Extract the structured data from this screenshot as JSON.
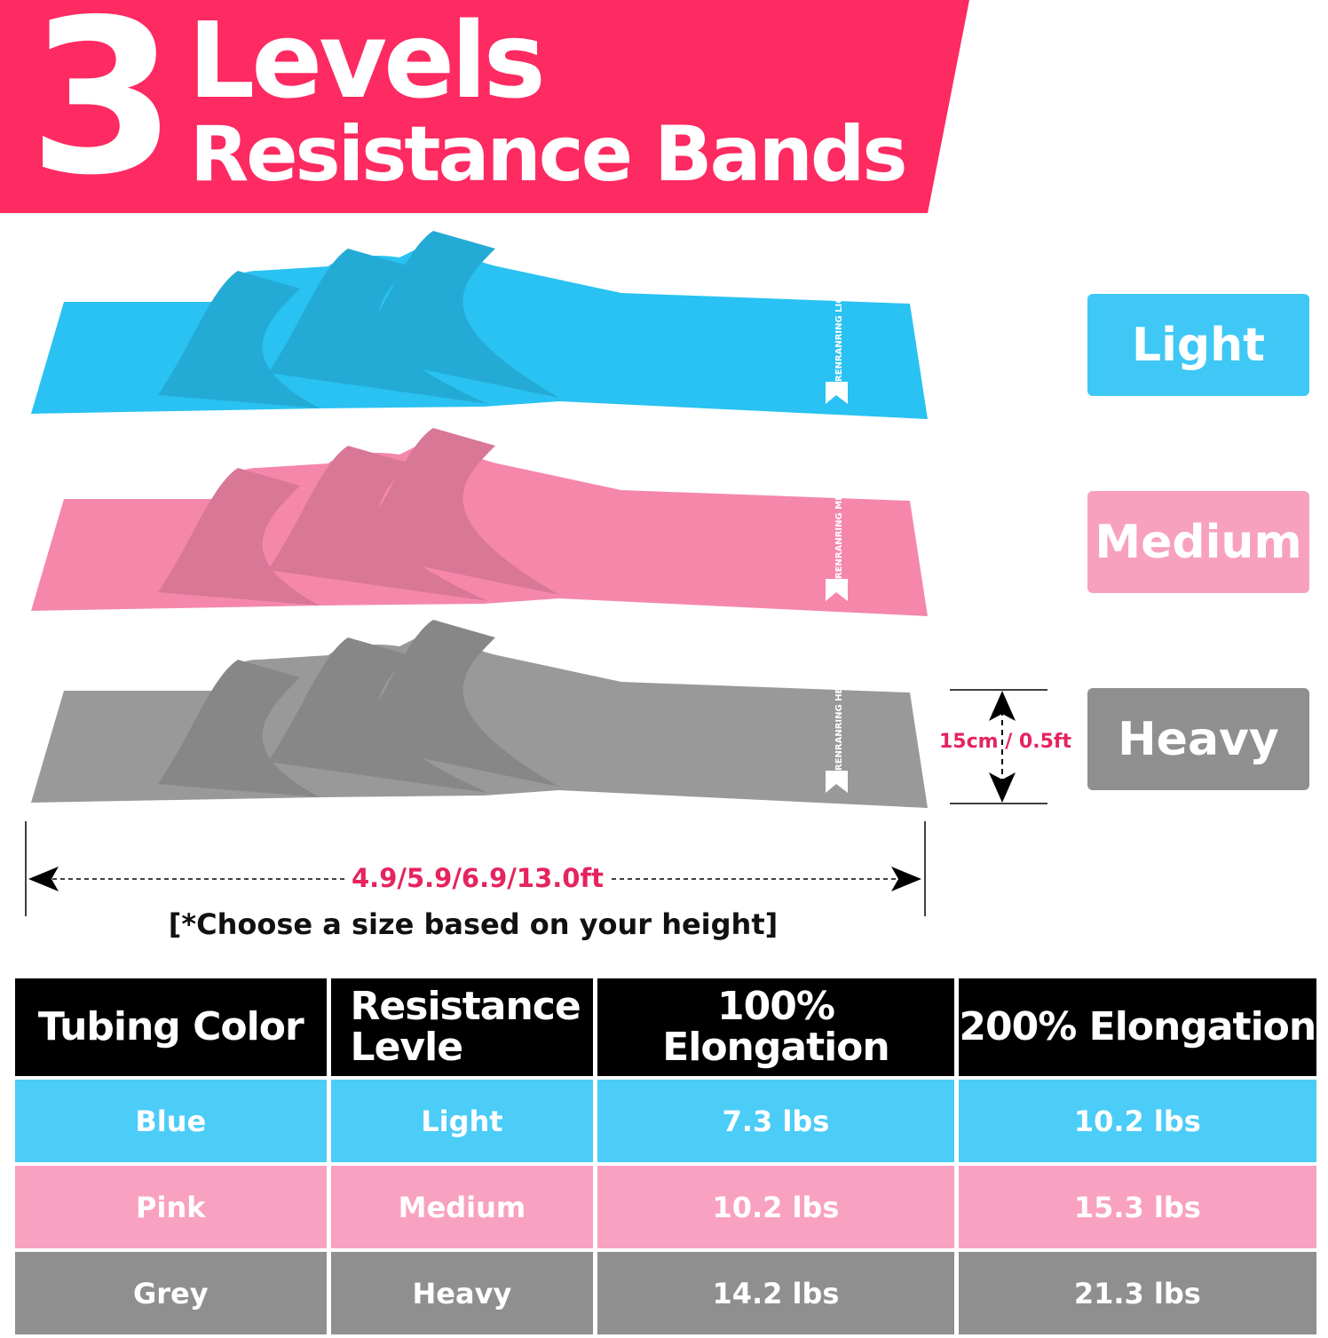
{
  "banner": {
    "number": "3",
    "line1": "Levels",
    "line2": "Resistance Bands",
    "color": "#fe2a62"
  },
  "bands": [
    {
      "name": "Light",
      "color": "#29c2f2",
      "logo_brand": "RENRANRING",
      "logo_level": "LIGTH"
    },
    {
      "name": "Medium",
      "color": "#f587ab",
      "logo_brand": "RENRANRING",
      "logo_level": "MEDIUM"
    },
    {
      "name": "Heavy",
      "color": "#999999",
      "logo_brand": "RENRANRING",
      "logo_level": "HEAVY"
    }
  ],
  "labels": {
    "light": "Light",
    "medium": "Medium",
    "heavy": "Heavy"
  },
  "dimensions": {
    "width": "15cm / 0.5ft",
    "length": "4.9/5.9/6.9/13.0ft",
    "note": "[*Choose a size based on your height]"
  },
  "table": {
    "headers": [
      "Tubing Color",
      "Resistance Levle",
      "100% Elongation",
      "200% Elongation"
    ],
    "rows": [
      {
        "cells": [
          "Blue",
          "Light",
          "7.3 lbs",
          "10.2 lbs"
        ],
        "color": "#4ccdf7"
      },
      {
        "cells": [
          "Pink",
          "Medium",
          "10.2 lbs",
          "15.3 lbs"
        ],
        "color": "#f9a1c0"
      },
      {
        "cells": [
          "Grey",
          "Heavy",
          "14.2 lbs",
          "21.3 lbs"
        ],
        "color": "#8f8f8f"
      }
    ]
  }
}
